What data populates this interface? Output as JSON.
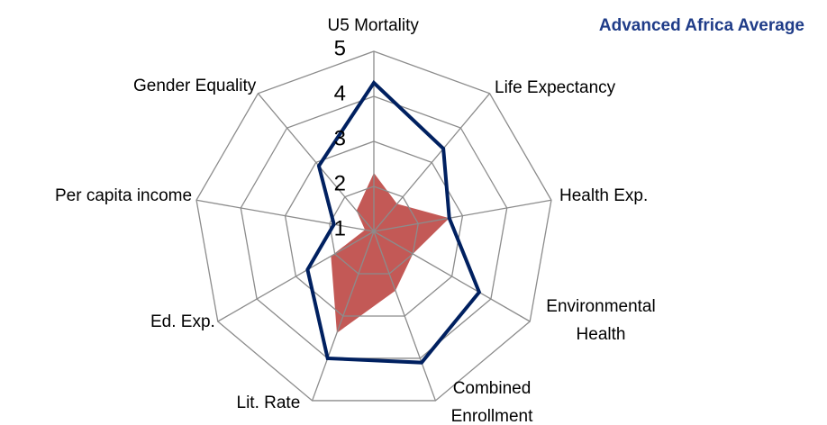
{
  "chart_data": {
    "type": "radar",
    "categories": [
      "U5 Mortality",
      "Life Expectancy",
      "Health Exp.",
      "Environmental Health",
      "Combined Enrollment",
      "Lit. Rate",
      "Ed. Exp.",
      "Per capita income",
      "Gender Equality"
    ],
    "series": [
      {
        "color": "#c0504d",
        "values": [
          2.3,
          1.8,
          2.7,
          2.0,
          2.4,
          3.4,
          2.1,
          1.2,
          1.6
        ]
      },
      {
        "name": "Advanced Africa Average",
        "color": "#002060",
        "values": [
          4.3,
          3.4,
          2.7,
          3.7,
          4.1,
          4.0,
          2.7,
          1.9,
          2.9
        ]
      }
    ],
    "ylim": [
      1,
      5
    ],
    "yticks": [
      1,
      2,
      3,
      4,
      5
    ],
    "grid": true
  }
}
